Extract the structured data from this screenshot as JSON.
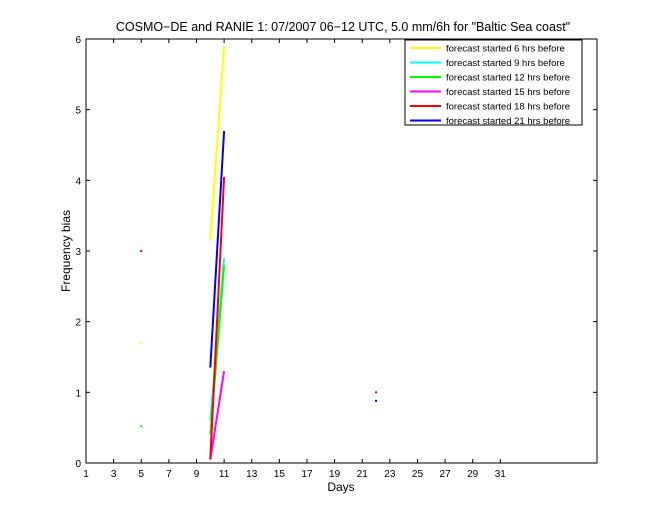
{
  "chart_data": {
    "type": "line",
    "title": "COSMO−DE and RANIE 1: 07/2007 06−12 UTC, 5.0 mm/6h for \"Baltic Sea coast\"",
    "xlabel": "Days",
    "ylabel": "Frequency bias",
    "xlim": [
      1,
      38
    ],
    "ylim": [
      0,
      6
    ],
    "x_ticks": [
      1,
      3,
      5,
      7,
      9,
      11,
      13,
      15,
      17,
      19,
      21,
      23,
      25,
      27,
      29,
      31
    ],
    "x_tick_labels": [
      "1",
      "3",
      "5",
      "7",
      "9",
      "11",
      "13",
      "15",
      "17",
      "19",
      "21",
      "23",
      "25",
      "27",
      "29",
      "31"
    ],
    "y_ticks": [
      0,
      1,
      2,
      3,
      4,
      5,
      6
    ],
    "y_tick_labels": [
      "0",
      "1",
      "2",
      "3",
      "4",
      "5",
      "6"
    ],
    "grid": false,
    "legend_position": "top-right",
    "series": [
      {
        "name": "forecast started 6 hrs before",
        "color": "#ffff00",
        "segments": [
          [
            [
              10,
              3.15
            ],
            [
              11,
              5.9
            ]
          ]
        ],
        "points": [
          [
            5,
            1.7
          ]
        ]
      },
      {
        "name": "forecast started 9 hrs before",
        "color": "#00ffff",
        "segments": [
          [
            [
              10,
              0.6
            ],
            [
              11,
              2.9
            ]
          ]
        ],
        "points": []
      },
      {
        "name": "forecast started 12 hrs before",
        "color": "#00ff00",
        "segments": [
          [
            [
              10,
              0.4
            ],
            [
              11,
              2.8
            ]
          ]
        ],
        "points": [
          [
            5,
            0.52
          ]
        ]
      },
      {
        "name": "forecast started 15 hrs before",
        "color": "#ff00ff",
        "segments": [
          [
            [
              10,
              0.05
            ],
            [
              11,
              1.3
            ]
          ]
        ],
        "points": []
      },
      {
        "name": "forecast started 18 hrs before",
        "color": "#ff0000",
        "segments": [
          [
            [
              10,
              0.05
            ],
            [
              11,
              4.05
            ]
          ]
        ],
        "points": [
          [
            5,
            3.0
          ],
          [
            22,
            1.0
          ]
        ]
      },
      {
        "name": "forecast started 21 hrs before",
        "color": "#0000ff",
        "segments": [
          [
            [
              10,
              1.35
            ],
            [
              11,
              4.7
            ]
          ]
        ],
        "points": [
          [
            22,
            0.88
          ]
        ]
      }
    ]
  }
}
